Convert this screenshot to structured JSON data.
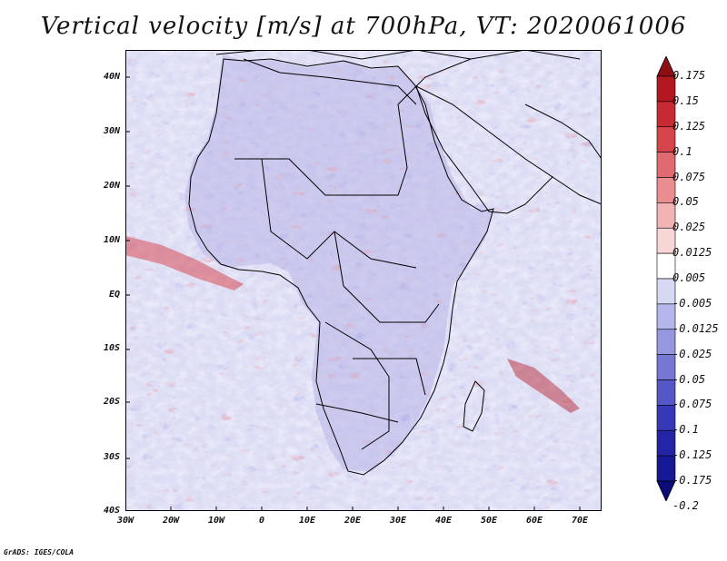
{
  "title": "Vertical velocity [m/s] at 700hPa, VT: 2020061006",
  "credit": "GrADS: IGES/COLA",
  "y_axis_labels": [
    "40N",
    "30N",
    "20N",
    "10N",
    "EQ",
    "10S",
    "20S",
    "30S",
    "40S"
  ],
  "x_axis_labels": [
    "30W",
    "20W",
    "10W",
    "0",
    "10E",
    "20E",
    "30E",
    "40E",
    "50E",
    "60E",
    "70E"
  ],
  "colorbar": {
    "labels": [
      "0.175",
      "0.15",
      "0.125",
      "0.1",
      "0.075",
      "0.05",
      "0.025",
      "0.0125",
      "0.005",
      "-0.005",
      "-0.0125",
      "-0.025",
      "-0.05",
      "-0.075",
      "-0.1",
      "-0.125",
      "-0.175",
      "-0.2"
    ],
    "colors": [
      "#8e0e14",
      "#b3171f",
      "#c82a33",
      "#d6444c",
      "#e06a6f",
      "#e98d90",
      "#f2b3b4",
      "#f8d6d6",
      "#ffffff",
      "#d7d8f3",
      "#b5b6ea",
      "#9597df",
      "#7577d3",
      "#5557c6",
      "#3638b8",
      "#2325a6",
      "#161896",
      "#0b0c7a"
    ]
  },
  "colors": {
    "land_tint": "#b8b4e6",
    "ocean_tint": "#d7d8f3",
    "upward_red": "#d94a55",
    "downward_blue": "#5557c6",
    "border": "#000000"
  }
}
